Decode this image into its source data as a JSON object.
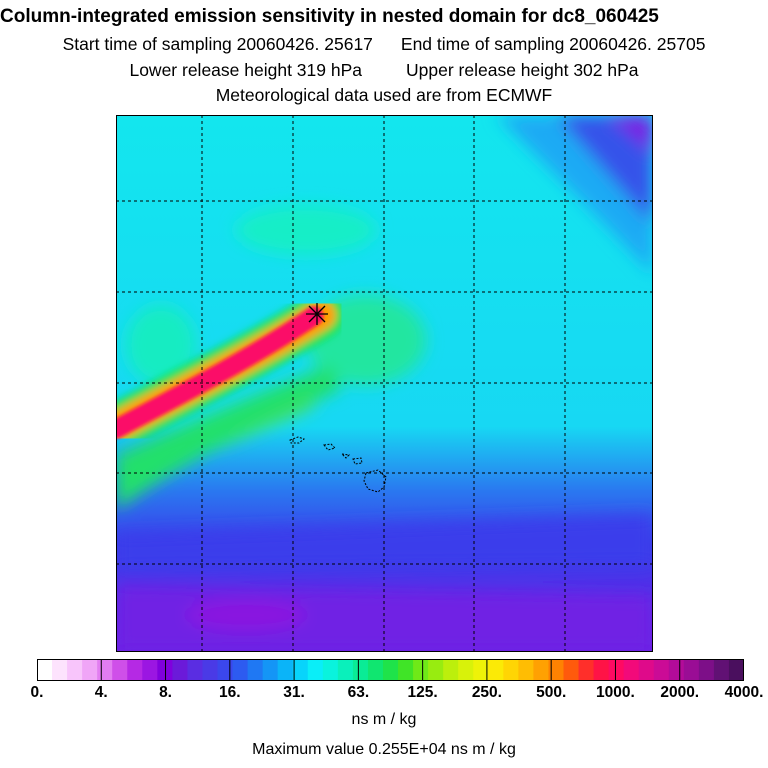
{
  "title": "Column-integrated emission sensitivity in nested domain for dc8_060425",
  "sampling": {
    "start": "Start time of sampling 20060426. 25617",
    "end": "End time of sampling 20060426. 25705"
  },
  "release": {
    "lower": "Lower release height  319 hPa",
    "upper": "Upper release height  302 hPa"
  },
  "met_data": "Meteorological data used are from ECMWF",
  "chart_data": {
    "type": "heatmap",
    "title": "Column-integrated emission sensitivity in nested domain for dc8_060425",
    "colorbar": {
      "tick_labels": [
        "0.",
        "4.",
        "8.",
        "16.",
        "31.",
        "63.",
        "125.",
        "250.",
        "500.",
        "1000.",
        "2000.",
        "4000."
      ],
      "tick_values": [
        0,
        4,
        8,
        16,
        31,
        63,
        125,
        250,
        500,
        1000,
        2000,
        4000
      ],
      "units": "ns m / kg",
      "colors": [
        "#ffffff",
        "#fde3fd",
        "#f8c5fb",
        "#f0a5f7",
        "#e27df1",
        "#cf4fe9",
        "#b529e4",
        "#9b16e2",
        "#8000dd",
        "#6b1ad9",
        "#5a2de2",
        "#4a3ae6",
        "#3b47ec",
        "#2d5bf0",
        "#1f78f3",
        "#1495f6",
        "#0bb4f8",
        "#08d4fb",
        "#0aeef8",
        "#0af3dd",
        "#0af0bb",
        "#0aec96",
        "#10e670",
        "#1fe34a",
        "#40e427",
        "#6fe918",
        "#98ec10",
        "#bcef0c",
        "#d8f20a",
        "#eef308",
        "#fbea06",
        "#ffd504",
        "#ffbd03",
        "#ffa102",
        "#ff8202",
        "#ff5a0c",
        "#ff2f2a",
        "#ff1346",
        "#ff0a62",
        "#f20a7a",
        "#df0a8a",
        "#cb0b96",
        "#b30b99",
        "#9a0d95",
        "#7d0f88",
        "#611174",
        "#4a0f5e"
      ]
    },
    "max_value": "Maximum value  0.255E+04 ns m / kg",
    "grid": true,
    "features": [
      "release point marker (star)",
      "plume band with maximum values",
      "island coastlines"
    ]
  }
}
